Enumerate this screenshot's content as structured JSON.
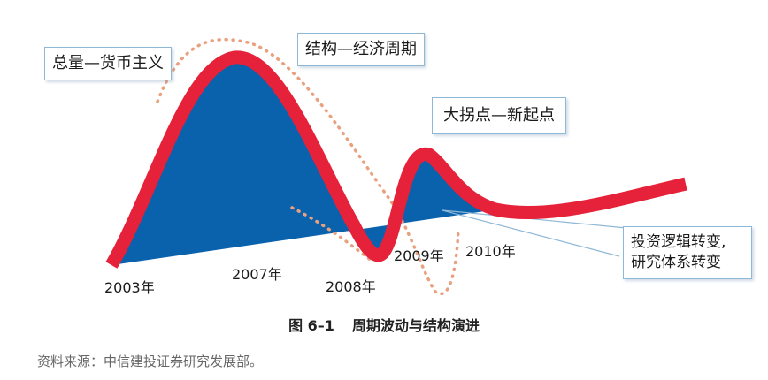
{
  "callouts": {
    "monetarism": "总量—货币主义",
    "structure_cycle": "结构—经济周期",
    "turning_point": "大拐点—新起点",
    "logic_shift_line1": "投资逻辑转变,",
    "logic_shift_line2": "研究体系转变"
  },
  "years": {
    "y2003": "2003年",
    "y2007": "2007年",
    "y2008": "2008年",
    "y2009": "2009年",
    "y2010": "2010年"
  },
  "caption": {
    "number": "图 6–1",
    "title": "周期波动与结构演进"
  },
  "source": "资料来源：中信建投证券研究发展部。",
  "colors": {
    "curve": "#e6223a",
    "fill": "#0a62ad",
    "dotted": "#e9a07e",
    "callout_border": "#8fb7d6",
    "pointer": "#8fb7d6"
  }
}
